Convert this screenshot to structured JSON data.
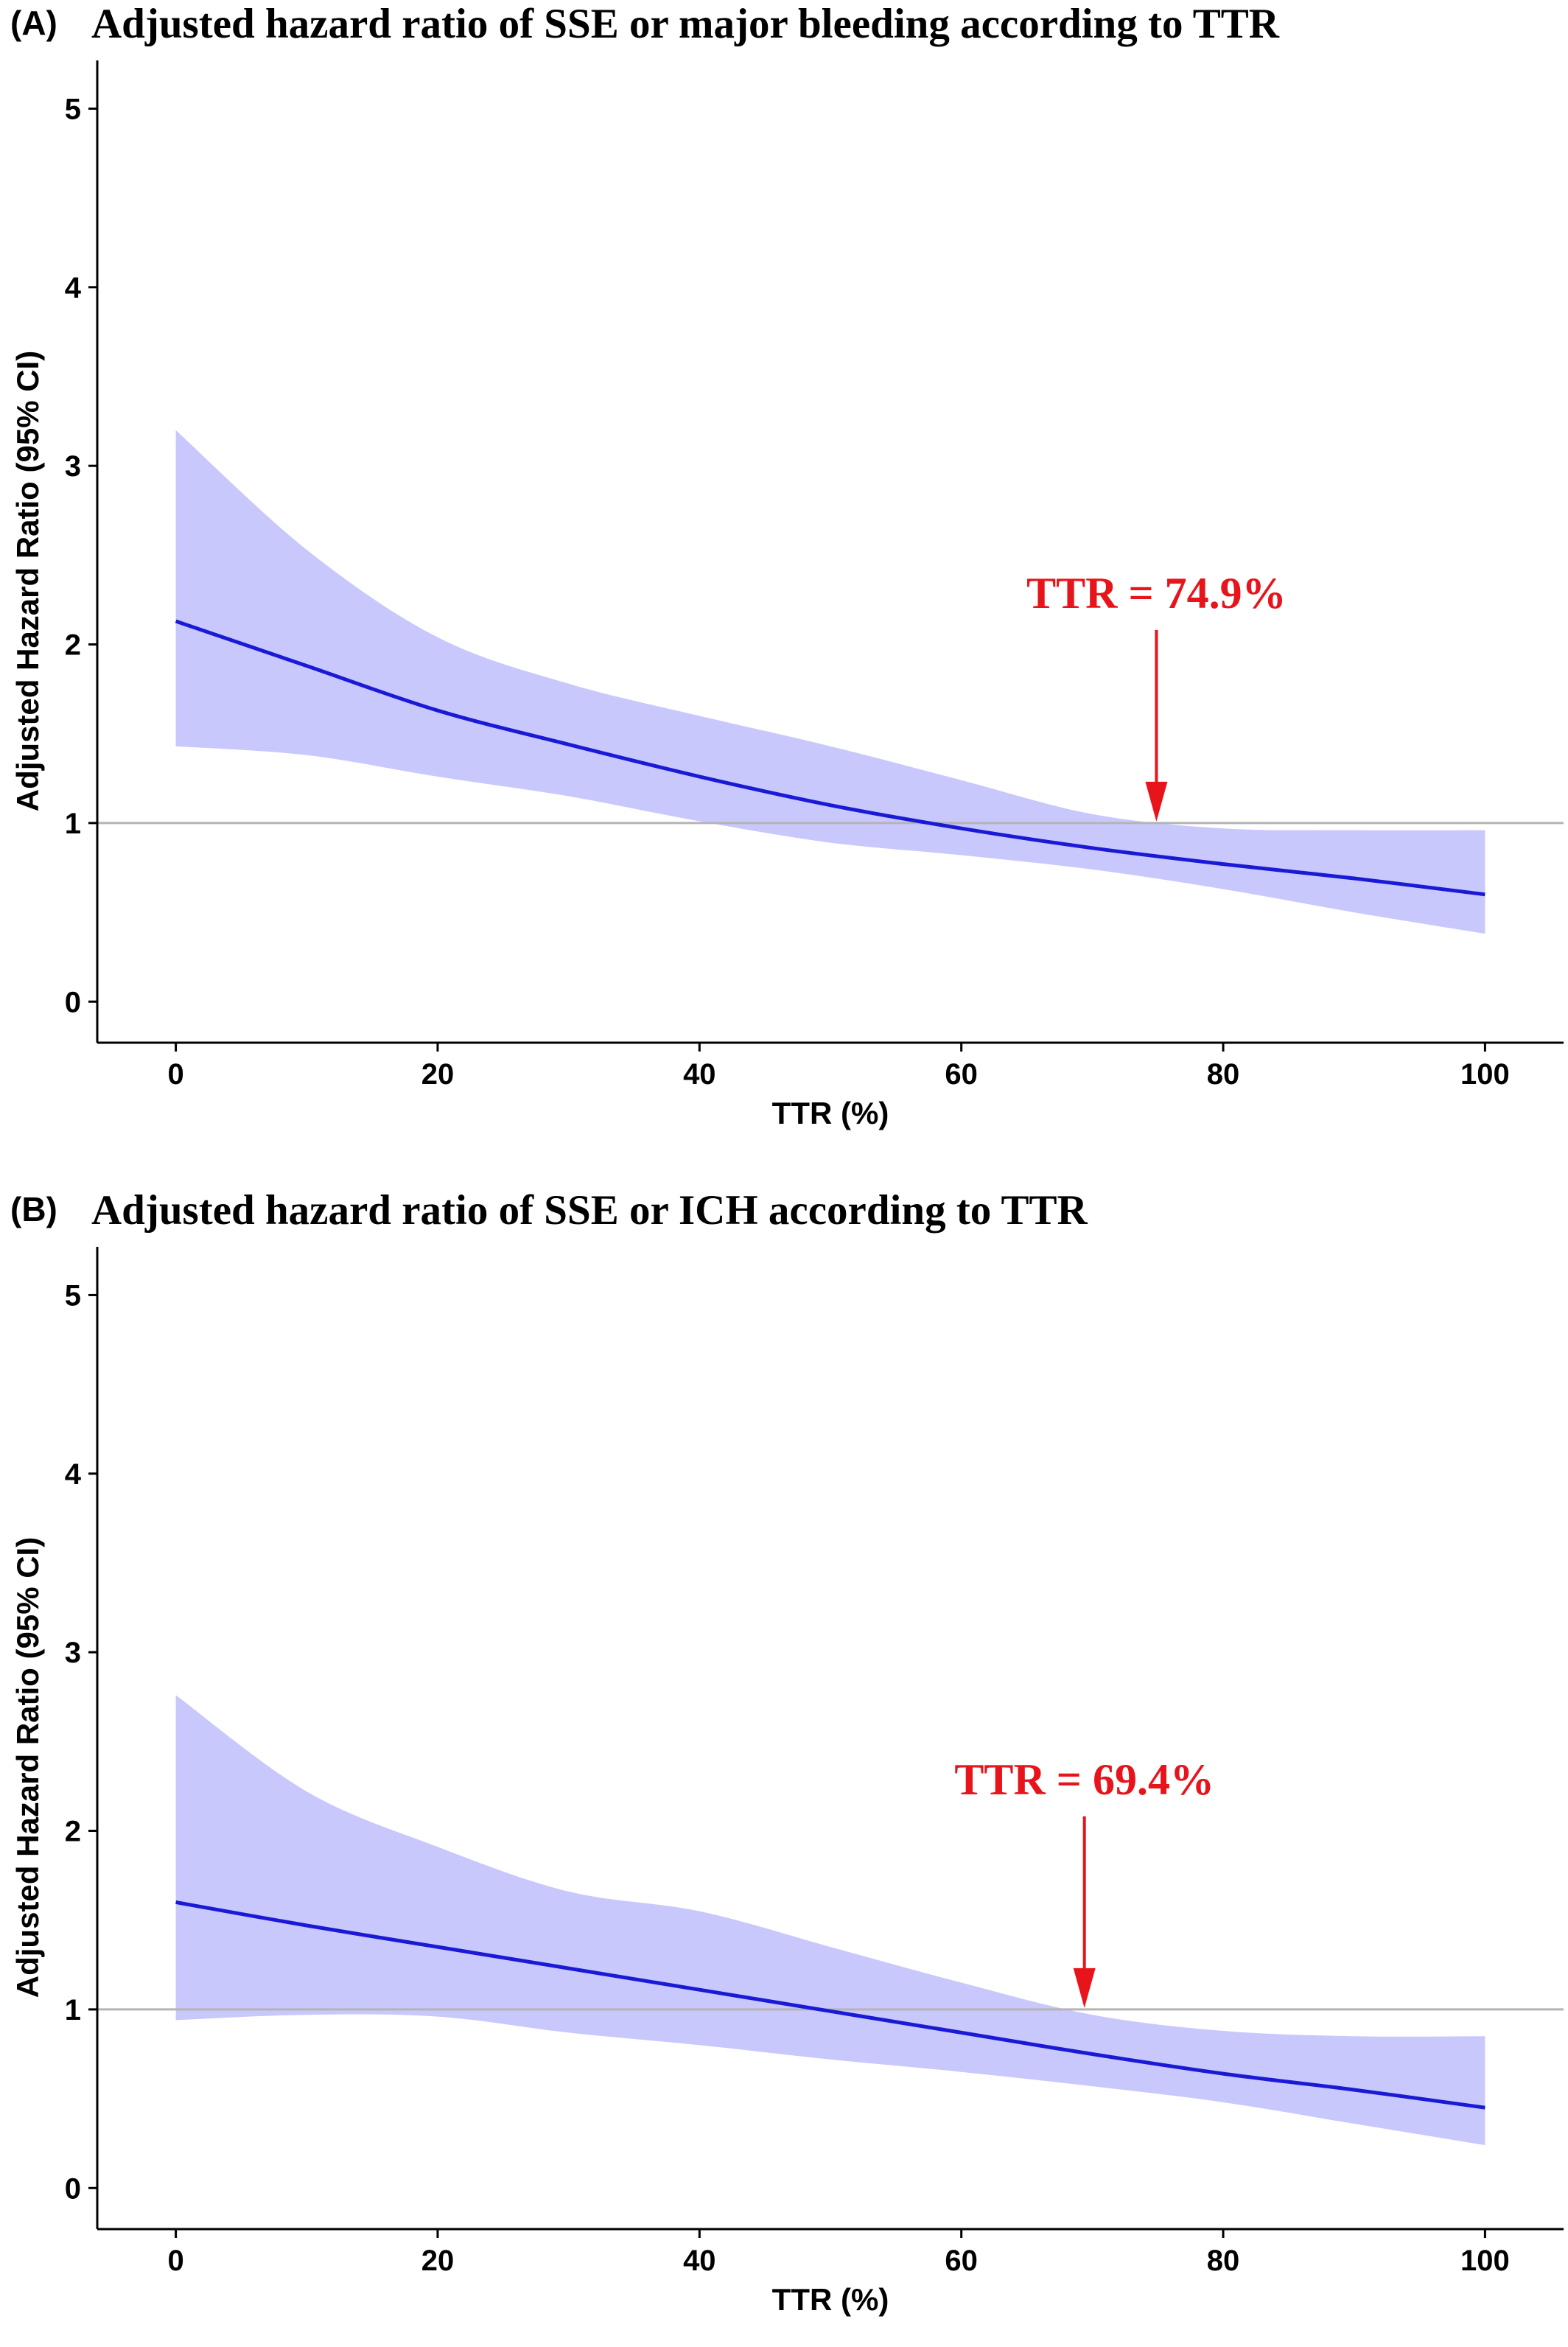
{
  "chart_data": [
    {
      "type": "line",
      "panel_label": "(A)",
      "title": "Adjusted hazard ratio of SSE or major bleeding according to TTR",
      "xlabel": "TTR (%)",
      "ylabel": "Adjusted Hazard Ratio (95% CI)",
      "xlim": [
        -6,
        106
      ],
      "ylim": [
        -0.23,
        5.27
      ],
      "xticks": [
        0,
        20,
        40,
        60,
        80,
        100
      ],
      "yticks": [
        0,
        1,
        2,
        3,
        4,
        5
      ],
      "reference_line_y": 1,
      "grid": false,
      "x": [
        0,
        10,
        20,
        30,
        40,
        50,
        60,
        70,
        80,
        90,
        100
      ],
      "estimate": [
        2.13,
        1.88,
        1.63,
        1.44,
        1.26,
        1.1,
        0.97,
        0.86,
        0.77,
        0.69,
        0.6
      ],
      "ci_lower": [
        1.43,
        1.38,
        1.26,
        1.15,
        1.01,
        0.89,
        0.82,
        0.74,
        0.63,
        0.5,
        0.38
      ],
      "ci_upper": [
        3.2,
        2.53,
        2.04,
        1.78,
        1.6,
        1.43,
        1.24,
        1.05,
        0.97,
        0.96,
        0.96
      ],
      "line_color": "#1a1ad6",
      "band_color": "#c8c8fc",
      "annotation": {
        "text": "TTR = 74.9%",
        "x": 74.9,
        "color": "#e8141b"
      }
    },
    {
      "type": "line",
      "panel_label": "(B)",
      "title": "Adjusted hazard ratio of SSE or ICH according to TTR",
      "xlabel": "TTR (%)",
      "ylabel": "Adjusted Hazard Ratio (95% CI)",
      "xlim": [
        -6,
        106
      ],
      "ylim": [
        -0.23,
        5.27
      ],
      "xticks": [
        0,
        20,
        40,
        60,
        80,
        100
      ],
      "yticks": [
        0,
        1,
        2,
        3,
        4,
        5
      ],
      "reference_line_y": 1,
      "grid": false,
      "x": [
        0,
        10,
        20,
        30,
        40,
        50,
        60,
        70,
        80,
        90,
        100
      ],
      "estimate": [
        1.6,
        1.47,
        1.35,
        1.23,
        1.11,
        0.99,
        0.87,
        0.75,
        0.64,
        0.55,
        0.45
      ],
      "ci_lower": [
        0.94,
        0.97,
        0.96,
        0.87,
        0.8,
        0.72,
        0.65,
        0.57,
        0.48,
        0.36,
        0.24
      ],
      "ci_upper": [
        2.76,
        2.22,
        1.91,
        1.66,
        1.55,
        1.35,
        1.15,
        0.97,
        0.88,
        0.85,
        0.85
      ],
      "line_color": "#1a1ad6",
      "band_color": "#c8c8fc",
      "annotation": {
        "text": "TTR = 69.4%",
        "x": 69.4,
        "color": "#e8141b"
      }
    }
  ]
}
